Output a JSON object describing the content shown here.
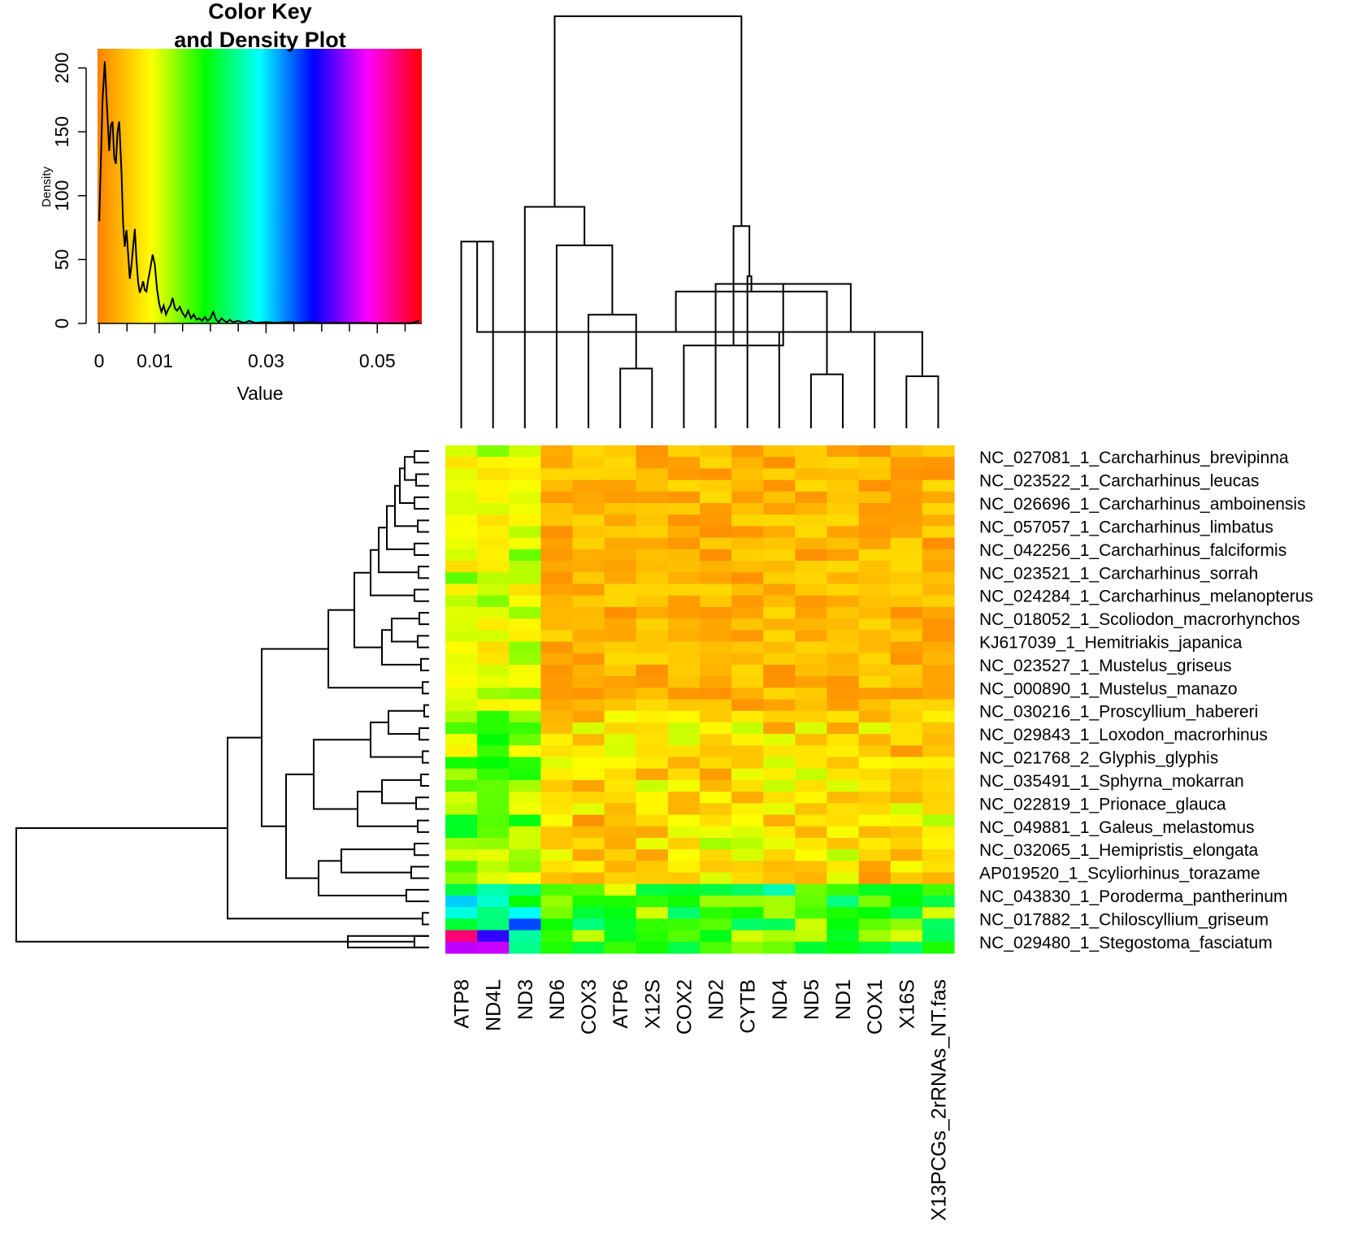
{
  "chart_data": {
    "type": "heatmap",
    "key": {
      "title_line1": "Color Key",
      "title_line2": "and Density Plot",
      "xlabel": "Value",
      "ylabel": "Density",
      "x_range": [
        -0.0003,
        0.058
      ],
      "y_range": [
        0,
        215
      ],
      "x_ticks": [
        0,
        0.01,
        0.03,
        0.05
      ],
      "x_tick_labels": [
        "0",
        "0.01",
        "0.03",
        "0.05"
      ],
      "y_ticks": [
        0,
        50,
        100,
        150,
        200
      ],
      "y_tick_labels": [
        "0",
        "50",
        "100",
        "150",
        "200"
      ],
      "color_scale": [
        "#ff8000",
        "#ffff00",
        "#00ff00",
        "#00ffff",
        "#0000ff",
        "#ff00ff",
        "#ff0000"
      ],
      "density_curve": [
        [
          0,
          80
        ],
        [
          0.0006,
          175
        ],
        [
          0.001,
          205
        ],
        [
          0.0014,
          170
        ],
        [
          0.0018,
          135
        ],
        [
          0.0021,
          155
        ],
        [
          0.0024,
          158
        ],
        [
          0.0027,
          130
        ],
        [
          0.003,
          125
        ],
        [
          0.0033,
          150
        ],
        [
          0.0036,
          158
        ],
        [
          0.004,
          120
        ],
        [
          0.0043,
          78
        ],
        [
          0.0046,
          60
        ],
        [
          0.0049,
          73
        ],
        [
          0.0052,
          55
        ],
        [
          0.0055,
          35
        ],
        [
          0.0058,
          45
        ],
        [
          0.0061,
          60
        ],
        [
          0.0064,
          74
        ],
        [
          0.0067,
          50
        ],
        [
          0.007,
          32
        ],
        [
          0.0073,
          24
        ],
        [
          0.0076,
          28
        ],
        [
          0.0079,
          33
        ],
        [
          0.0082,
          26
        ],
        [
          0.0085,
          25
        ],
        [
          0.0088,
          34
        ],
        [
          0.0092,
          43
        ],
        [
          0.0096,
          54
        ],
        [
          0.01,
          46
        ],
        [
          0.0104,
          27
        ],
        [
          0.0108,
          15
        ],
        [
          0.0112,
          9
        ],
        [
          0.0116,
          14
        ],
        [
          0.012,
          7
        ],
        [
          0.0124,
          11
        ],
        [
          0.0128,
          14
        ],
        [
          0.0132,
          20
        ],
        [
          0.0136,
          12
        ],
        [
          0.014,
          10
        ],
        [
          0.0145,
          13
        ],
        [
          0.015,
          8
        ],
        [
          0.0155,
          5
        ],
        [
          0.016,
          10
        ],
        [
          0.0165,
          4
        ],
        [
          0.017,
          7
        ],
        [
          0.0175,
          3
        ],
        [
          0.018,
          4
        ],
        [
          0.0185,
          2
        ],
        [
          0.019,
          5
        ],
        [
          0.0195,
          2
        ],
        [
          0.02,
          4
        ],
        [
          0.0205,
          9
        ],
        [
          0.021,
          3
        ],
        [
          0.0215,
          1
        ],
        [
          0.022,
          4
        ],
        [
          0.0225,
          2
        ],
        [
          0.023,
          1
        ],
        [
          0.0235,
          3
        ],
        [
          0.024,
          1
        ],
        [
          0.025,
          2
        ],
        [
          0.026,
          0.5
        ],
        [
          0.027,
          2
        ],
        [
          0.028,
          0.5
        ],
        [
          0.03,
          1
        ],
        [
          0.032,
          0.5
        ],
        [
          0.034,
          1
        ],
        [
          0.036,
          0.5
        ],
        [
          0.038,
          1
        ],
        [
          0.04,
          0.3
        ],
        [
          0.042,
          0.5
        ],
        [
          0.045,
          0.3
        ],
        [
          0.048,
          0.5
        ],
        [
          0.05,
          0.2
        ],
        [
          0.053,
          0.2
        ],
        [
          0.056,
          0.2
        ],
        [
          0.0575,
          2
        ]
      ]
    },
    "columns": [
      "ATP8",
      "ND4L",
      "ND3",
      "ND6",
      "COX3",
      "ATP6",
      "X12S",
      "COX2",
      "ND2",
      "CYTB",
      "ND4",
      "ND5",
      "ND1",
      "COX1",
      "X16S",
      "X13PCGs_2rRNAs_NT.fas"
    ],
    "rows": [
      "NC_027081_1_Carcharhinus_brevipinna",
      "NC_023522_1_Carcharhinus_leucas",
      "NC_026696_1_Carcharhinus_amboinensis",
      "NC_057057_1_Carcharhinus_limbatus",
      "NC_042256_1_Carcharhinus_falciformis",
      "NC_023521_1_Carcharhinus_sorrah",
      "NC_024284_1_Carcharhinus_melanopterus",
      "NC_018052_1_Scoliodon_macrorhynchos",
      "KJ617039_1_Hemitriakis_japanica",
      "NC_023527_1_Mustelus_griseus",
      "NC_000890_1_Mustelus_manazo",
      "NC_030216_1_Proscyllium_habereri",
      "NC_029843_1_Loxodon_macrorhinus",
      "NC_021768_2_Glyphis_glyphis",
      "NC_035491_1_Sphyrna_mokarran",
      "NC_022819_1_Prionace_glauca",
      "NC_049881_1_Galeus_melastomus",
      "NC_032065_1_Hemipristis_elongata",
      "AP019520_1_Scyliorhinus_torazame",
      "NC_043830_1_Poroderma_pantherinum",
      "NC_017882_1_Chiloscyllium_griseum",
      "NC_029480_1_Stegostoma_fasciatum"
    ],
    "column_dendrogram": [
      [
        0,
        1,
        97
      ],
      [
        15,
        14,
        27
      ],
      [
        13,
        16,
        50
      ],
      [
        11,
        12,
        28
      ],
      [
        10,
        17,
        50
      ],
      [
        19,
        18,
        71
      ],
      [
        8,
        20,
        75
      ],
      [
        6,
        5,
        31
      ],
      [
        7,
        22,
        43
      ],
      [
        4,
        23,
        59
      ],
      [
        9,
        21,
        79
      ],
      [
        3,
        25,
        95
      ],
      [
        24,
        26,
        105
      ],
      [
        2,
        27,
        115
      ],
      [
        28,
        29,
        214
      ]
    ]
  }
}
